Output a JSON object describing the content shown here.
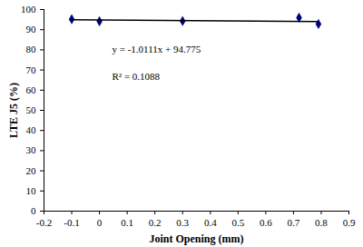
{
  "chart_data": {
    "type": "scatter",
    "x_label": "Joint Opening (mm)",
    "y_label": "LTE J5 (%)",
    "xlim": [
      -0.2,
      0.9
    ],
    "xticks": [
      -0.2,
      -0.1,
      0,
      0.1,
      0.2,
      0.3,
      0.4,
      0.5,
      0.6,
      0.7,
      0.8,
      0.9
    ],
    "ylim": [
      0,
      100
    ],
    "yticks": [
      0,
      10,
      20,
      30,
      40,
      50,
      60,
      70,
      80,
      90,
      100
    ],
    "grid": false,
    "annotations": [
      "y = -1.0111x + 94.775",
      "R² = 0.1088"
    ],
    "series": [
      {
        "type": "scatter",
        "color": "#000080",
        "marker": "diamond",
        "x": [
          -0.1,
          0,
          0.3,
          0.72,
          0.79
        ],
        "values": [
          95.2,
          94.2,
          94.3,
          96.0,
          92.8
        ]
      },
      {
        "type": "line",
        "color": "#000000",
        "line_style": "solid",
        "x": [
          -0.1,
          0.79
        ],
        "values": [
          94.88,
          93.98
        ]
      }
    ]
  }
}
